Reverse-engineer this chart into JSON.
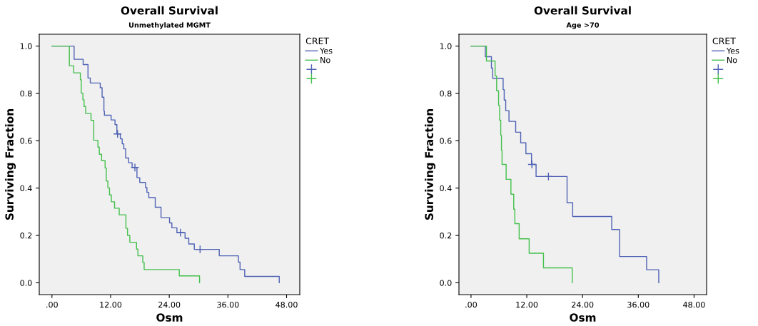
{
  "chart_data": [
    {
      "type": "step",
      "title": "Overall Survival",
      "subtitle": "Unmethylated MGMT",
      "xlabel": "Osm",
      "ylabel": "Surviving Fraction",
      "legend_title": "CRET",
      "legend": "top right",
      "grid": false,
      "xlim": [
        -2.6,
        50.7
      ],
      "ylim": [
        -0.05,
        1.05
      ],
      "xticks": [
        {
          "value": 0,
          "label": ".00"
        },
        {
          "value": 12,
          "label": "12.00"
        },
        {
          "value": 24,
          "label": "24.00"
        },
        {
          "value": 36,
          "label": "36.00"
        },
        {
          "value": 48,
          "label": "48.00"
        }
      ],
      "yticks": [
        {
          "value": 0,
          "label": "0.0"
        },
        {
          "value": 0.2,
          "label": "0.2"
        },
        {
          "value": 0.4,
          "label": "0.4"
        },
        {
          "value": 0.6,
          "label": "0.6"
        },
        {
          "value": 0.8,
          "label": "0.8"
        },
        {
          "value": 1,
          "label": "1.0"
        }
      ],
      "series": [
        {
          "name": "Yes",
          "color": "#4f62b5",
          "x": [
            0,
            4.53,
            6.38,
            7.37,
            7.84,
            9.88,
            10.26,
            10.63,
            10.73,
            12.1,
            12.9,
            13.28,
            13.99,
            14.37,
            14.7,
            15.08,
            15.69,
            16.4,
            17.39,
            17.96,
            19.14,
            19.43,
            19.81,
            21.13,
            22.31,
            24.06,
            24.53,
            25.57,
            27.23,
            27.99,
            29.12,
            34.23,
            38.15,
            38.48,
            39.43,
            46.5
          ],
          "values": [
            1.0,
            0.944,
            0.922,
            0.865,
            0.844,
            0.824,
            0.784,
            0.725,
            0.708,
            0.688,
            0.668,
            0.629,
            0.608,
            0.587,
            0.566,
            0.527,
            0.507,
            0.487,
            0.444,
            0.424,
            0.402,
            0.382,
            0.36,
            0.319,
            0.275,
            0.253,
            0.232,
            0.212,
            0.188,
            0.164,
            0.141,
            0.114,
            0.087,
            0.056,
            0.027,
            0.0
          ]
        },
        {
          "name": "No",
          "color": "#44c04d",
          "x": [
            0,
            3.56,
            4.44,
            5.81,
            5.99,
            6.33,
            6.57,
            6.9,
            7.99,
            8.55,
            9.4,
            9.69,
            10.16,
            10.87,
            11.11,
            11.44,
            11.77,
            12.15,
            12.81,
            13.76,
            15.13,
            15.46,
            15.93,
            17.3,
            17.58,
            18.58,
            18.86,
            26.05,
            30.2
          ],
          "values": [
            1.0,
            0.917,
            0.887,
            0.858,
            0.801,
            0.773,
            0.745,
            0.715,
            0.686,
            0.602,
            0.573,
            0.543,
            0.516,
            0.485,
            0.43,
            0.401,
            0.371,
            0.342,
            0.315,
            0.287,
            0.23,
            0.2,
            0.171,
            0.142,
            0.114,
            0.086,
            0.056,
            0.029,
            0.0
          ]
        },
        {
          "type": "scatter",
          "marker": "cross",
          "color": "#4f62b5",
          "x": [
            13.42,
            16.97,
            26.28,
            30.3
          ],
          "values": [
            0.629,
            0.487,
            0.212,
            0.141
          ]
        },
        {
          "type": "scatter",
          "marker": "cross",
          "color": "#44c04d"
        }
      ]
    },
    {
      "type": "step",
      "title": "Overall Survival",
      "subtitle": "Age >70",
      "xlabel": "Osm",
      "ylabel": "Surviving Fraction",
      "legend_title": "CRET",
      "legend": "top right",
      "grid": false,
      "xlim": [
        -2.6,
        50.7
      ],
      "ylim": [
        -0.05,
        1.05
      ],
      "xticks": [
        {
          "value": 0,
          "label": ".00"
        },
        {
          "value": 12,
          "label": "12.00"
        },
        {
          "value": 24,
          "label": "24.00"
        },
        {
          "value": 36,
          "label": "36.00"
        },
        {
          "value": 48,
          "label": "48.00"
        }
      ],
      "yticks": [
        {
          "value": 0,
          "label": "0.0"
        },
        {
          "value": 0.2,
          "label": "0.2"
        },
        {
          "value": 0.4,
          "label": "0.4"
        },
        {
          "value": 0.6,
          "label": "0.6"
        },
        {
          "value": 0.8,
          "label": "0.8"
        },
        {
          "value": 1,
          "label": "1.0"
        }
      ],
      "series": [
        {
          "name": "Yes",
          "color": "#4f62b5",
          "x": [
            0,
            3.08,
            4.39,
            4.67,
            6.91,
            7.14,
            7.47,
            8.17,
            9.61,
            10.69,
            11.81,
            13.02,
            14.0,
            20.67,
            21.88,
            30.28,
            31.96,
            37.79,
            40.4
          ],
          "values": [
            1.0,
            0.955,
            0.907,
            0.864,
            0.816,
            0.772,
            0.727,
            0.682,
            0.636,
            0.591,
            0.545,
            0.5,
            0.449,
            0.338,
            0.28,
            0.225,
            0.111,
            0.055,
            0.0
          ]
        },
        {
          "name": "No",
          "color": "#44c04d",
          "x": [
            0,
            3.32,
            5.18,
            5.51,
            5.93,
            6.16,
            6.4,
            6.55,
            6.68,
            7.56,
            8.59,
            9.19,
            9.43,
            10.36,
            12.51,
            15.59,
            21.79
          ],
          "values": [
            1.0,
            0.937,
            0.874,
            0.811,
            0.749,
            0.687,
            0.624,
            0.56,
            0.5,
            0.437,
            0.374,
            0.311,
            0.25,
            0.186,
            0.125,
            0.063,
            0.0
          ]
        },
        {
          "type": "scatter",
          "marker": "cross",
          "color": "#4f62b5",
          "x": [
            13.1,
            16.66
          ],
          "values": [
            0.5,
            0.449
          ]
        },
        {
          "type": "scatter",
          "marker": "cross",
          "color": "#44c04d"
        }
      ]
    }
  ]
}
